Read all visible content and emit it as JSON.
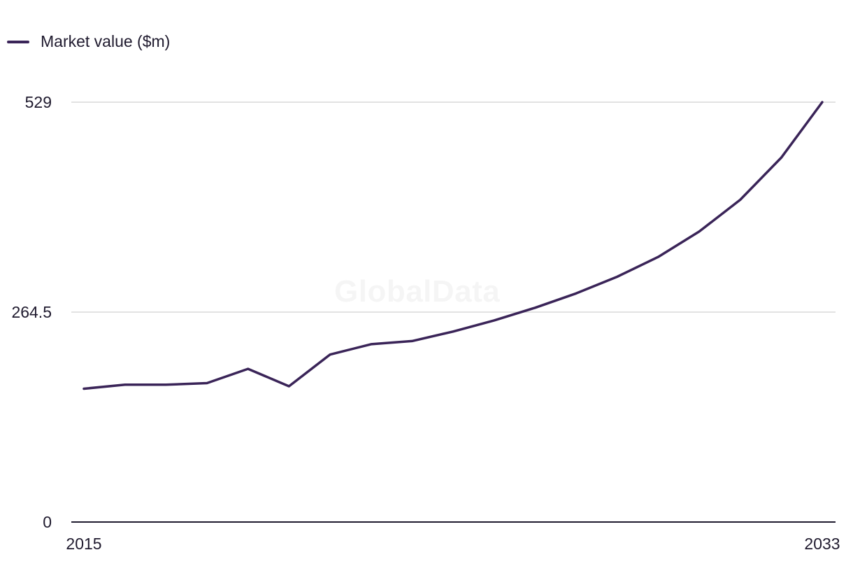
{
  "colors": {
    "line": "#3a2458",
    "grid": "#d9d9d9",
    "axis": "#1f1a2e"
  },
  "watermark": "GlobalData",
  "chart_data": {
    "type": "line",
    "title": "",
    "xlabel": "",
    "ylabel": "",
    "x": [
      2015,
      2016,
      2017,
      2018,
      2019,
      2020,
      2021,
      2022,
      2023,
      2024,
      2025,
      2026,
      2027,
      2028,
      2029,
      2030,
      2031,
      2032,
      2033
    ],
    "series": [
      {
        "name": "Market value ($m)",
        "values": [
          168,
          173,
          173,
          175,
          193,
          171,
          211,
          224,
          228,
          240,
          254,
          270,
          288,
          309,
          334,
          366,
          406,
          459,
          529
        ]
      }
    ],
    "ylim": [
      0,
      529
    ],
    "xlim": [
      2015,
      2033
    ],
    "y_ticks": [
      "0",
      "264.5",
      "529"
    ],
    "x_ticks": [
      "2015",
      "2033"
    ],
    "grid": true,
    "legend": "top-left"
  }
}
